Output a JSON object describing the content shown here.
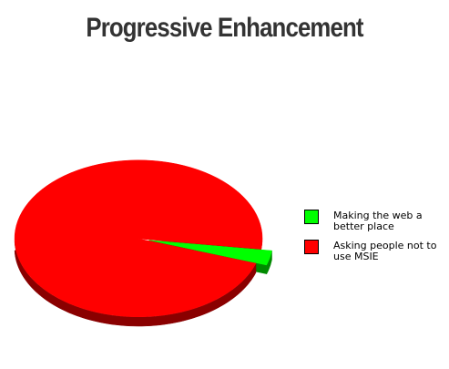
{
  "title": "Progressive Enhancement",
  "colors": {
    "red": "#ff0000",
    "red_dark": "#8a0000",
    "green": "#00ff00",
    "green_dark": "#008a00"
  },
  "chart_data": {
    "type": "pie",
    "title": "Progressive Enhancement",
    "legend_position": "right",
    "slices": [
      {
        "label": "Making the web a better place",
        "value": 3,
        "color": "#00ff00",
        "exploded": true
      },
      {
        "label": "Asking people not to use MSIE",
        "value": 97,
        "color": "#ff0000",
        "exploded": false
      }
    ]
  },
  "legend": [
    {
      "label": "Making the web a better place",
      "color": "#00ff00"
    },
    {
      "label": "Asking people not to use MSIE",
      "color": "#ff0000"
    }
  ]
}
